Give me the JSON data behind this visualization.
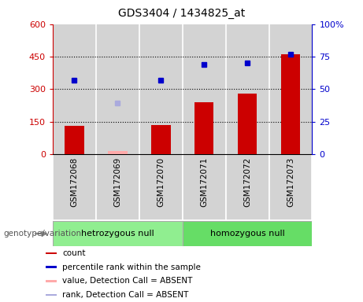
{
  "title": "GDS3404 / 1434825_at",
  "samples": [
    "GSM172068",
    "GSM172069",
    "GSM172070",
    "GSM172071",
    "GSM172072",
    "GSM172073"
  ],
  "groups": [
    {
      "name": "hetrozygous null",
      "color": "#90ee90",
      "indices": [
        0,
        1,
        2
      ]
    },
    {
      "name": "homozygous null",
      "color": "#66dd66",
      "indices": [
        3,
        4,
        5
      ]
    }
  ],
  "bar_values": [
    130,
    null,
    135,
    240,
    280,
    460
  ],
  "bar_absent_values": [
    null,
    15,
    null,
    null,
    null,
    null
  ],
  "dot_values": [
    340,
    null,
    340,
    415,
    420,
    460
  ],
  "dot_absent_values": [
    null,
    235,
    null,
    null,
    null,
    null
  ],
  "bar_color": "#cc0000",
  "bar_absent_color": "#ffaaaa",
  "dot_color": "#0000cc",
  "dot_absent_color": "#aaaadd",
  "left_ylim": [
    0,
    600
  ],
  "right_ylim": [
    0,
    100
  ],
  "left_yticks": [
    0,
    150,
    300,
    450,
    600
  ],
  "right_yticks": [
    0,
    25,
    50,
    75,
    100
  ],
  "right_yticklabels": [
    "0",
    "25",
    "50",
    "75",
    "100%"
  ],
  "hlines": [
    150,
    300,
    450
  ],
  "left_ycolor": "#cc0000",
  "right_ycolor": "#0000cc",
  "legend": [
    {
      "label": "count",
      "color": "#cc0000"
    },
    {
      "label": "percentile rank within the sample",
      "color": "#0000cc"
    },
    {
      "label": "value, Detection Call = ABSENT",
      "color": "#ffaaaa"
    },
    {
      "label": "rank, Detection Call = ABSENT",
      "color": "#aaaadd"
    }
  ],
  "genotype_label": "genotype/variation",
  "sample_area_color": "#d3d3d3",
  "group_border_color": "#aaaaaa"
}
